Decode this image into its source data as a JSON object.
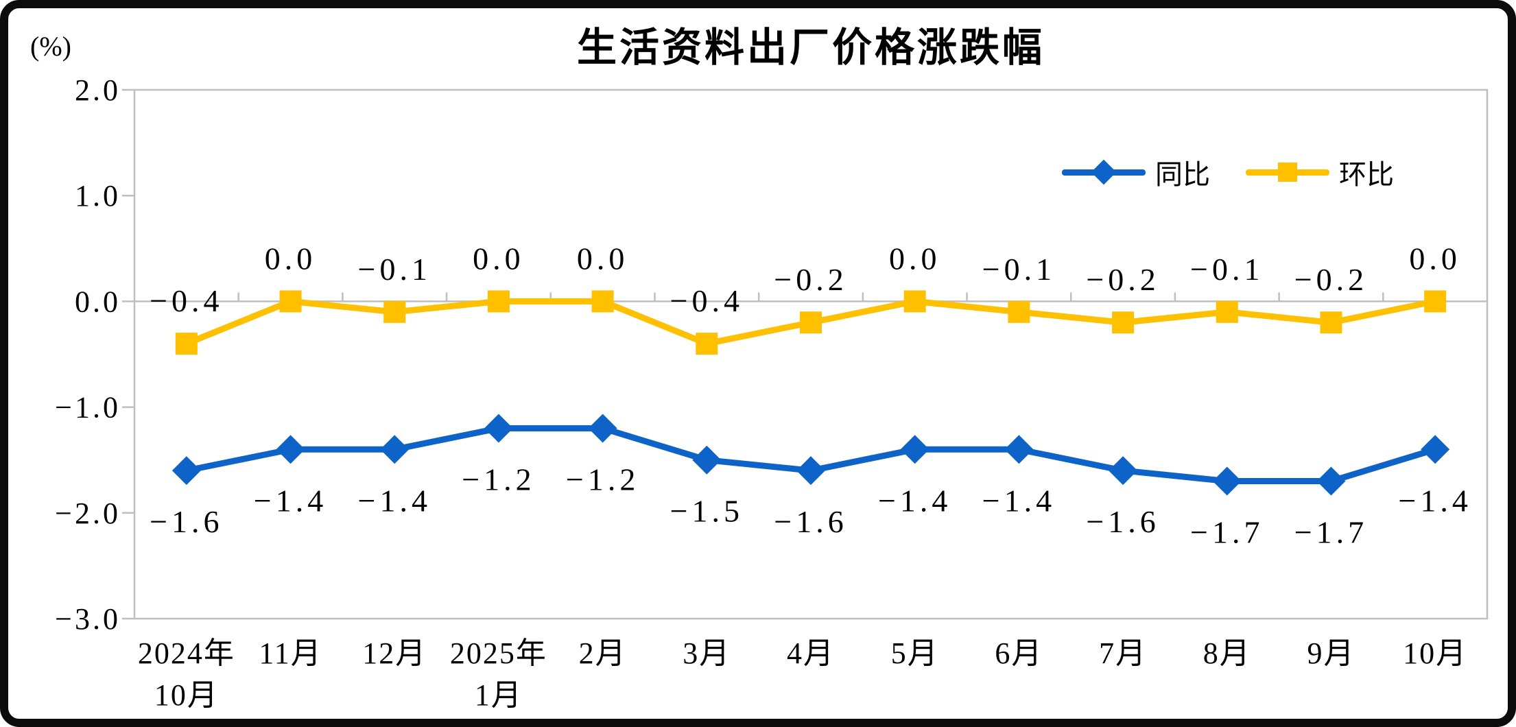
{
  "title": "生活资料出厂价格涨跌幅",
  "unit_label": "(%)",
  "colors": {
    "tongbi_blue": "#0E63C8",
    "huanbi_gold": "#FFC000",
    "axis_gray": "#BFBFBF",
    "frame_black": "#0B0B0B",
    "text": "#000000"
  },
  "chart_data": {
    "type": "line",
    "title": "生活资料出厂价格涨跌幅",
    "unit": "(%)",
    "categories": [
      [
        "2024年",
        "10月"
      ],
      [
        "11月"
      ],
      [
        "12月"
      ],
      [
        "2025年",
        "1月"
      ],
      [
        "2月"
      ],
      [
        "3月"
      ],
      [
        "4月"
      ],
      [
        "5月"
      ],
      [
        "6月"
      ],
      [
        "7月"
      ],
      [
        "8月"
      ],
      [
        "9月"
      ],
      [
        "10月"
      ]
    ],
    "series": [
      {
        "name": "同比",
        "color": "#0E63C8",
        "marker": "diamond",
        "label_position": "below",
        "values": [
          -1.6,
          -1.4,
          -1.4,
          -1.2,
          -1.2,
          -1.5,
          -1.6,
          -1.4,
          -1.4,
          -1.6,
          -1.7,
          -1.7,
          -1.4
        ]
      },
      {
        "name": "环比",
        "color": "#FFC000",
        "marker": "square",
        "label_position": "above",
        "values": [
          -0.4,
          0.0,
          -0.1,
          0.0,
          0.0,
          -0.4,
          -0.2,
          0.0,
          -0.1,
          -0.2,
          -0.1,
          -0.2,
          0.0
        ]
      }
    ],
    "yticks": [
      2.0,
      1.0,
      0.0,
      -1.0,
      -2.0,
      -3.0
    ],
    "ylim": [
      -3.0,
      2.0
    ],
    "grid": false,
    "legend_position": "top-right-inside"
  }
}
